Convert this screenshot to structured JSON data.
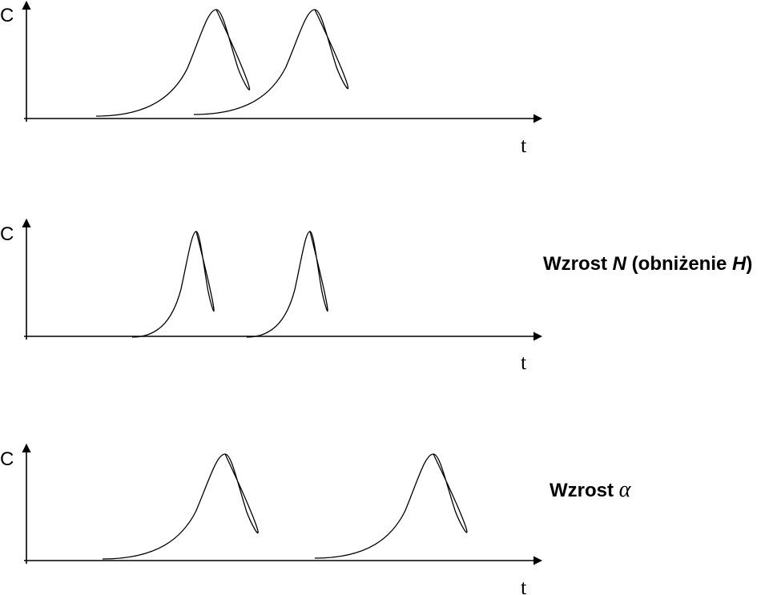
{
  "panels": [
    {
      "y_label": "C",
      "x_label": "t"
    },
    {
      "y_label": "C",
      "x_label": "t",
      "caption": [
        "Wzrost ",
        "N",
        " (obniżenie ",
        "H",
        ")"
      ]
    },
    {
      "y_label": "C",
      "x_label": "t",
      "caption": [
        "Wzrost ",
        "α"
      ]
    }
  ]
}
